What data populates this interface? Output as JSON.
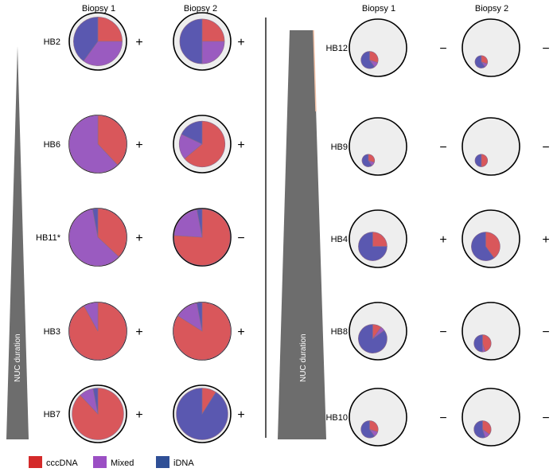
{
  "legend": [
    {
      "key": "cccDNA",
      "label": "cccDNA",
      "color": "#d42a2a"
    },
    {
      "key": "mixed",
      "label": "Mixed",
      "color": "#9b4fc4"
    },
    {
      "key": "idna",
      "label": "iDNA",
      "color": "#2f4f96"
    }
  ],
  "colors": {
    "pie_cccDNA": "#d9575b",
    "pie_mixed": "#9a5bc0",
    "pie_idna": "#5a58b0",
    "circle_fill": "#eeeeee",
    "wedge": "#6d6d6d"
  },
  "chart_data": [
    {
      "type": "pie",
      "panel": "left",
      "column_headers": [
        "Biopsy 1",
        "Biopsy 2"
      ],
      "axis_label": "NUC duration",
      "rows": [
        {
          "patient": "HB2",
          "biopsies": [
            {
              "size": 0.85,
              "cccDNA": 25,
              "mixed": 35,
              "idna": 40,
              "sign": "+"
            },
            {
              "size": 0.78,
              "cccDNA": 25,
              "mixed": 25,
              "idna": 50,
              "sign": "+"
            }
          ]
        },
        {
          "patient": "HB6",
          "biopsies": [
            {
              "size": 1.0,
              "cccDNA": 38,
              "mixed": 62,
              "idna": 0,
              "sign": "+"
            },
            {
              "size": 0.8,
              "cccDNA": 64,
              "mixed": 18,
              "idna": 18,
              "sign": "+"
            }
          ]
        },
        {
          "patient": "HB11*",
          "biopsies": [
            {
              "size": 1.0,
              "cccDNA": 37,
              "mixed": 60,
              "idna": 3,
              "sign": "+"
            },
            {
              "size": 0.98,
              "cccDNA": 76,
              "mixed": 21,
              "idna": 3,
              "sign": "−"
            }
          ]
        },
        {
          "patient": "HB3",
          "biopsies": [
            {
              "size": 1.0,
              "cccDNA": 92,
              "mixed": 8,
              "idna": 0,
              "sign": "+"
            },
            {
              "size": 1.0,
              "cccDNA": 84,
              "mixed": 13,
              "idna": 3,
              "sign": "+"
            }
          ]
        },
        {
          "patient": "HB7",
          "biopsies": [
            {
              "size": 0.9,
              "cccDNA": 88,
              "mixed": 9,
              "idna": 3,
              "sign": "+"
            },
            {
              "size": 0.9,
              "cccDNA": 9,
              "mixed": 0,
              "idna": 91,
              "sign": "+"
            }
          ]
        }
      ]
    },
    {
      "type": "pie",
      "panel": "right",
      "column_headers": [
        "Biopsy 1",
        "Biopsy 2"
      ],
      "axis_label": "NUC duration",
      "rows": [
        {
          "patient": "HB12",
          "biopsies": [
            {
              "size": 0.3,
              "cccDNA": 30,
              "mixed": 10,
              "idna": 60,
              "sign": "−"
            },
            {
              "size": 0.22,
              "cccDNA": 30,
              "mixed": 10,
              "idna": 60,
              "sign": "−"
            }
          ]
        },
        {
          "patient": "HB9",
          "biopsies": [
            {
              "size": 0.22,
              "cccDNA": 30,
              "mixed": 10,
              "idna": 60,
              "sign": "−"
            },
            {
              "size": 0.22,
              "cccDNA": 50,
              "mixed": 0,
              "idna": 50,
              "sign": "−"
            }
          ]
        },
        {
          "patient": "HB4",
          "biopsies": [
            {
              "size": 0.5,
              "cccDNA": 25,
              "mixed": 0,
              "idna": 75,
              "sign": "+"
            },
            {
              "size": 0.5,
              "cccDNA": 40,
              "mixed": 0,
              "idna": 60,
              "sign": "+"
            }
          ]
        },
        {
          "patient": "HB8",
          "biopsies": [
            {
              "size": 0.5,
              "cccDNA": 10,
              "mixed": 5,
              "idna": 85,
              "sign": "−"
            },
            {
              "size": 0.3,
              "cccDNA": 45,
              "mixed": 5,
              "idna": 50,
              "sign": "−"
            }
          ]
        },
        {
          "patient": "HB10",
          "biopsies": [
            {
              "size": 0.3,
              "cccDNA": 30,
              "mixed": 10,
              "idna": 60,
              "sign": "−"
            },
            {
              "size": 0.3,
              "cccDNA": 35,
              "mixed": 10,
              "idna": 55,
              "sign": "−"
            }
          ]
        }
      ]
    }
  ]
}
